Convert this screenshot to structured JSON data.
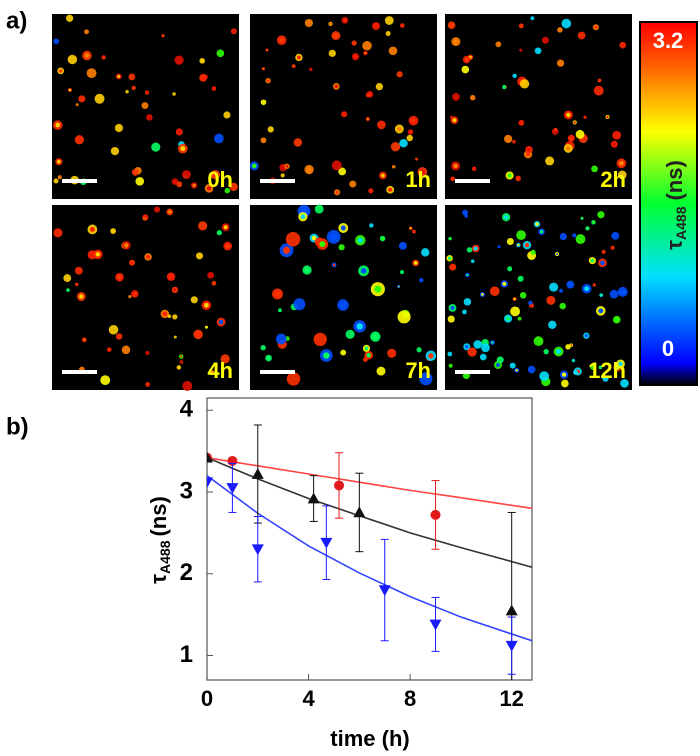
{
  "panel_a": {
    "label": "a)",
    "images": [
      {
        "label": "0h"
      },
      {
        "label": "1h"
      },
      {
        "label": "2h"
      },
      {
        "label": "4h"
      },
      {
        "label": "7h"
      },
      {
        "label": "12h"
      }
    ],
    "colorbar": {
      "max": 3.2,
      "min": 0,
      "label": {
        "symbol": "τ",
        "subscript": "A488",
        "unit": "(ns)"
      }
    }
  },
  "chart_data": {
    "type": "scatter",
    "panel_label": "b)",
    "x_label": "time (h)",
    "y_label": {
      "symbol": "τ",
      "subscript": "A488",
      "unit": "(ns)"
    },
    "xlim": [
      0,
      12.8
    ],
    "ylim": [
      0.7,
      4.15
    ],
    "xticks": [
      0,
      4,
      8,
      12
    ],
    "yticks": [
      1,
      2,
      3,
      4
    ],
    "series": [
      {
        "color": "#e31a1c",
        "marker": "circle",
        "x": [
          0,
          1,
          5.2,
          9
        ],
        "values": [
          3.42,
          3.38,
          3.08,
          2.72
        ],
        "errors": [
          0,
          0,
          0.4,
          0.42
        ]
      },
      {
        "color": "#111111",
        "marker": "triangle-up",
        "x": [
          0,
          2,
          4.2,
          6,
          12
        ],
        "values": [
          3.42,
          3.22,
          2.92,
          2.75,
          1.55
        ],
        "errors": [
          0,
          0.6,
          0.28,
          0.48,
          1.2
        ]
      },
      {
        "color": "#1a1aff",
        "marker": "triangle-down",
        "x": [
          0,
          1,
          2,
          4.7,
          7,
          9,
          12
        ],
        "values": [
          3.12,
          3.05,
          2.3,
          2.38,
          1.8,
          1.38,
          1.12
        ],
        "errors": [
          0,
          0.3,
          0.4,
          0.45,
          0.62,
          0.33,
          0.35
        ]
      }
    ],
    "fits": [
      {
        "color": "#ff4444",
        "x": [
          0,
          2,
          4,
          6,
          8,
          10,
          12.8
        ],
        "values": [
          3.42,
          3.32,
          3.22,
          3.12,
          3.02,
          2.93,
          2.8
        ]
      },
      {
        "color": "#333333",
        "x": [
          0,
          2,
          4,
          6,
          8,
          10,
          12.8
        ],
        "values": [
          3.42,
          3.16,
          2.92,
          2.71,
          2.5,
          2.32,
          2.08
        ]
      },
      {
        "color": "#3344ff",
        "x": [
          0,
          2,
          4,
          6,
          8,
          10,
          12.8
        ],
        "values": [
          3.2,
          2.74,
          2.34,
          2.01,
          1.72,
          1.47,
          1.18
        ]
      }
    ]
  }
}
